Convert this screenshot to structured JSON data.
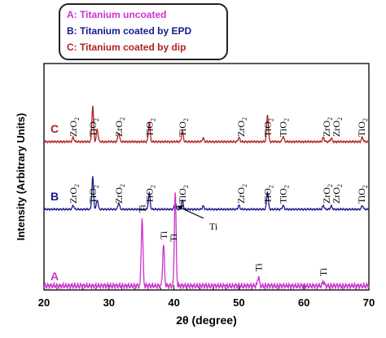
{
  "chart_data": {
    "type": "line",
    "xlabel": "2θ (degree)",
    "ylabel": "Intensity (Arbitrary Units)",
    "xlim": [
      20,
      70
    ],
    "x_ticks": [
      "20",
      "30",
      "40",
      "50",
      "60",
      "70"
    ],
    "grid": false,
    "legend": {
      "placement": "top-left",
      "entries": [
        {
          "text": "A:  Titanium uncoated",
          "color": "#cc33cc"
        },
        {
          "text": "B:  Titanium coated by EPD",
          "color": "#1a1a8c"
        },
        {
          "text": "C:  Titanium coated by dip",
          "color": "#b22222"
        }
      ]
    },
    "series": [
      {
        "name": "C",
        "color": "#b22222",
        "peaks": [
          {
            "x": 24.5,
            "h": 0.12
          },
          {
            "x": 27.5,
            "h": 1.0
          },
          {
            "x": 28.2,
            "h": 0.35
          },
          {
            "x": 31.5,
            "h": 0.25
          },
          {
            "x": 36.2,
            "h": 0.55
          },
          {
            "x": 41.3,
            "h": 0.3
          },
          {
            "x": 44.5,
            "h": 0.1
          },
          {
            "x": 50.0,
            "h": 0.12
          },
          {
            "x": 54.4,
            "h": 0.75
          },
          {
            "x": 56.8,
            "h": 0.15
          },
          {
            "x": 63.0,
            "h": 0.12
          },
          {
            "x": 64.2,
            "h": 0.1
          },
          {
            "x": 69.0,
            "h": 0.12
          }
        ],
        "peak_labels": [
          {
            "x": 24.5,
            "text": "ZrO2"
          },
          {
            "x": 27.5,
            "text": "TiO2"
          },
          {
            "x": 31.5,
            "text": "ZrO2"
          },
          {
            "x": 36.2,
            "text": "TiO2"
          },
          {
            "x": 41.3,
            "text": "TiO2"
          },
          {
            "x": 50.3,
            "text": "ZrO2"
          },
          {
            "x": 54.4,
            "text": "TiO2"
          },
          {
            "x": 56.8,
            "text": "TiO2"
          },
          {
            "x": 63.5,
            "text": "ZrO2"
          },
          {
            "x": 65.0,
            "text": "ZrO2"
          },
          {
            "x": 68.9,
            "text": "TiO2"
          }
        ]
      },
      {
        "name": "B",
        "color": "#1a1a8c",
        "peaks": [
          {
            "x": 24.5,
            "h": 0.12
          },
          {
            "x": 27.5,
            "h": 1.0
          },
          {
            "x": 28.2,
            "h": 0.3
          },
          {
            "x": 31.5,
            "h": 0.2
          },
          {
            "x": 36.2,
            "h": 0.5
          },
          {
            "x": 40.2,
            "h": 0.22
          },
          {
            "x": 41.3,
            "h": 0.28
          },
          {
            "x": 44.5,
            "h": 0.1
          },
          {
            "x": 50.0,
            "h": 0.12
          },
          {
            "x": 54.4,
            "h": 0.55
          },
          {
            "x": 56.8,
            "h": 0.12
          },
          {
            "x": 63.0,
            "h": 0.12
          },
          {
            "x": 64.2,
            "h": 0.1
          },
          {
            "x": 69.0,
            "h": 0.12
          }
        ],
        "peak_labels": [
          {
            "x": 24.5,
            "text": "ZrO2"
          },
          {
            "x": 27.5,
            "text": "TiO2"
          },
          {
            "x": 31.5,
            "text": "ZrO2"
          },
          {
            "x": 36.2,
            "text": "TiO2"
          },
          {
            "x": 41.3,
            "text": "TiO2"
          },
          {
            "x": 50.3,
            "text": "ZrO2"
          },
          {
            "x": 54.4,
            "text": "TiO2"
          },
          {
            "x": 56.8,
            "text": "TiO2"
          },
          {
            "x": 63.5,
            "text": "ZrO2"
          },
          {
            "x": 65.0,
            "text": "ZrO2"
          },
          {
            "x": 68.9,
            "text": "TiO2"
          }
        ],
        "annotation": {
          "text": "Ti",
          "x": 40.2
        }
      },
      {
        "name": "A",
        "color": "#cc33cc",
        "peaks": [
          {
            "x": 35.1,
            "h": 0.72
          },
          {
            "x": 38.4,
            "h": 0.44
          },
          {
            "x": 40.2,
            "h": 1.0
          },
          {
            "x": 53.0,
            "h": 0.1
          },
          {
            "x": 63.0,
            "h": 0.05
          }
        ],
        "peak_labels": [
          {
            "x": 35.1,
            "text": "Ti"
          },
          {
            "x": 38.4,
            "text": "Ti"
          },
          {
            "x": 40.2,
            "text": "Ti"
          },
          {
            "x": 53.0,
            "text": "Ti"
          },
          {
            "x": 63.0,
            "text": "Ti"
          }
        ]
      }
    ]
  }
}
